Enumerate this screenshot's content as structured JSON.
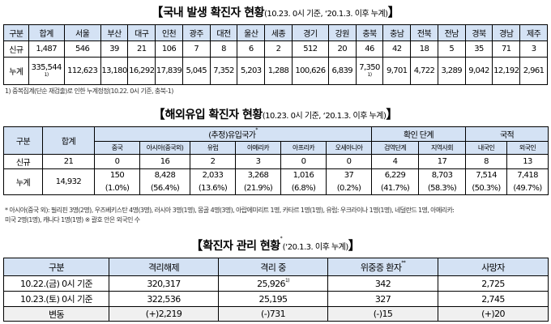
{
  "t1": {
    "main": "국내 발생 확진자 현황",
    "sub": "(10.23. 0시 기준, ‘20.1.3. 이후 누계)"
  },
  "t1_headers": [
    "구분",
    "합계",
    "서울",
    "부산",
    "대구",
    "인천",
    "광주",
    "대전",
    "울산",
    "세종",
    "경기",
    "강원",
    "충북",
    "충남",
    "전북",
    "전남",
    "경북",
    "경남",
    "제주"
  ],
  "t1_new": [
    "신규",
    "1,487",
    "546",
    "39",
    "21",
    "106",
    "7",
    "8",
    "6",
    "2",
    "512",
    "20",
    "46",
    "42",
    "18",
    "5",
    "35",
    "71",
    "3"
  ],
  "t1_total": [
    "누계",
    "335,544",
    "112,623",
    "13,180",
    "16,292",
    "17,839",
    "5,045",
    "7,352",
    "5,203",
    "1,288",
    "100,626",
    "6,839",
    "7,350",
    "9,701",
    "4,722",
    "3,289",
    "9,042",
    "12,192",
    "2,961"
  ],
  "t1_fn_mark": "1)",
  "t1_note": "1) 중복집계(단순 재검출)로 인한 누계정정(10.22. 0시 기준, 충북-1)",
  "t2": {
    "main": "해외유입 확진자 현황",
    "sub": "(10.23. 0시 기준, ‘20.1.3. 이후 누계)"
  },
  "t2_h": {
    "gubun": "구분",
    "sum": "합계",
    "country": "(추정)유입국가",
    "confirm": "확인 단계",
    "nation": "국적"
  },
  "t2_sub": [
    "중국",
    "아시아(중국외)",
    "유럽",
    "아메리카",
    "아프리카",
    "오세아니아",
    "검역단계",
    "지역사회",
    "내국인",
    "외국인"
  ],
  "t2_new": [
    "신규",
    "21",
    "0",
    "16",
    "2",
    "3",
    "0",
    "0",
    "4",
    "17",
    "8",
    "13"
  ],
  "t2_total_label": "누계",
  "t2_total_sum": "14,932",
  "t2_total": [
    "150",
    "8,428",
    "2,033",
    "3,268",
    "1,016",
    "37",
    "6,229",
    "8,703",
    "7,514",
    "7,418"
  ],
  "t2_pct": [
    "(1.0%)",
    "(56.4%)",
    "(13.6%)",
    "(21.9%)",
    "(6.8%)",
    "(0.2%)",
    "(41.7%)",
    "(58.3%)",
    "(50.3%)",
    "(49.7%)"
  ],
  "t2_note1": "* 아시아(중국 외): 필리핀 3명(2명), 우즈베키스탄 4명(3명), 러시아 3명(1명), 몽골 4명(3명), 아랍에미리트 1명, 카타르 1명(1명), 유럽: 우크라이나 1명(1명), 네덜란드 1명, 아메리카:",
  "t2_note2": "미국 2명(1명), 캐나다 1명(1명)      ※ 괄호 안은 외국인 수",
  "t3": {
    "main": "확진자 관리 현황",
    "sub": "(‘20.1.3. 이후 누계)"
  },
  "t3_headers": [
    "구분",
    "격리해제",
    "격리 중",
    "위중증 환자",
    "사망자"
  ],
  "t3_rows": [
    [
      "10.22.(금) 0시 기준",
      "320,317",
      "25,926",
      "342",
      "2,725"
    ],
    [
      "10.23.(토) 0시 기준",
      "322,536",
      "25,195",
      "327",
      "2,745"
    ],
    [
      "변동",
      "(+)2,219",
      "(-)731",
      "(-)15",
      "(+)20"
    ]
  ]
}
